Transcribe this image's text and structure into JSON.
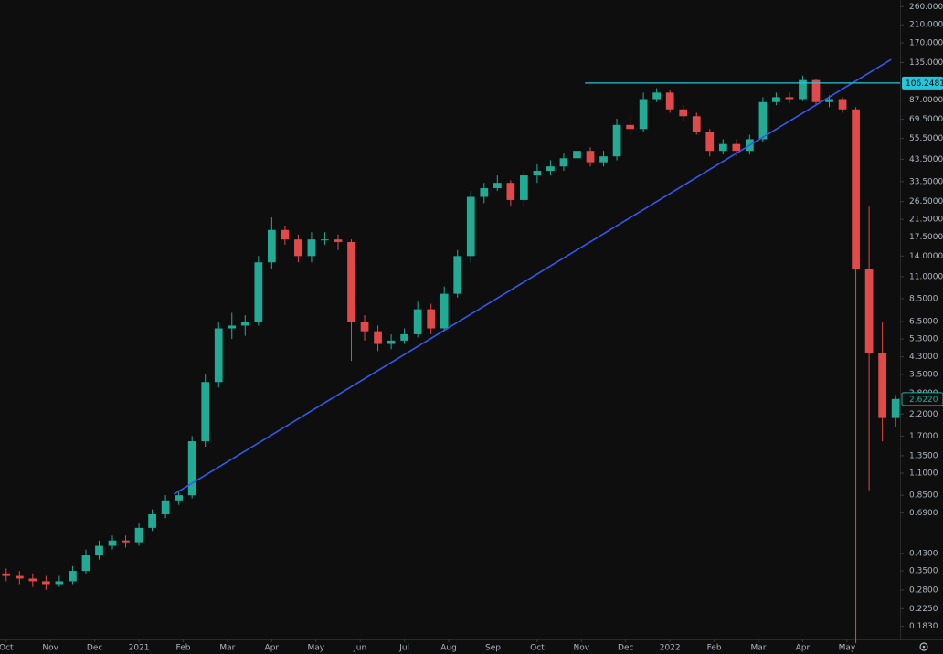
{
  "chart_data": {
    "type": "candlestick",
    "log_scale": true,
    "grid": false,
    "up_color": "#22ab94",
    "down_color": "#e04a4a",
    "xlim": [
      -0.14,
      20.2
    ],
    "xticks": [
      {
        "value": 0,
        "label": "Oct"
      },
      {
        "value": 1,
        "label": "Nov"
      },
      {
        "value": 2,
        "label": "Dec"
      },
      {
        "value": 3,
        "label": "2021"
      },
      {
        "value": 4,
        "label": "Feb"
      },
      {
        "value": 5,
        "label": "Mar"
      },
      {
        "value": 6,
        "label": "Apr"
      },
      {
        "value": 7,
        "label": "May"
      },
      {
        "value": 8,
        "label": "Jun"
      },
      {
        "value": 9,
        "label": "Jul"
      },
      {
        "value": 10,
        "label": "Aug"
      },
      {
        "value": 11,
        "label": "Sep"
      },
      {
        "value": 12,
        "label": "Oct"
      },
      {
        "value": 13,
        "label": "Nov"
      },
      {
        "value": 14,
        "label": "Dec"
      },
      {
        "value": 15,
        "label": "2022"
      },
      {
        "value": 16,
        "label": "Feb"
      },
      {
        "value": 17,
        "label": "Mar"
      },
      {
        "value": 18,
        "label": "Apr"
      },
      {
        "value": 19,
        "label": "May"
      }
    ],
    "ylim": [
      0.157,
      281
    ],
    "yticks": [
      {
        "value": 260,
        "label": "260.0000"
      },
      {
        "value": 210,
        "label": "210.0000"
      },
      {
        "value": 170,
        "label": "170.0000"
      },
      {
        "value": 135,
        "label": "135.0000"
      },
      {
        "value": 87,
        "label": "87.0000"
      },
      {
        "value": 69.5,
        "label": "69.5000"
      },
      {
        "value": 55.5,
        "label": "55.5000"
      },
      {
        "value": 43.5,
        "label": "43.5000"
      },
      {
        "value": 33.5,
        "label": "33.5000"
      },
      {
        "value": 26.5,
        "label": "26.5000"
      },
      {
        "value": 21.5,
        "label": "21.5000"
      },
      {
        "value": 17.5,
        "label": "17.5000"
      },
      {
        "value": 14,
        "label": "14.0000"
      },
      {
        "value": 11,
        "label": "11.0000"
      },
      {
        "value": 8.5,
        "label": "8.5000"
      },
      {
        "value": 6.5,
        "label": "6.5000"
      },
      {
        "value": 5.3,
        "label": "5.3000"
      },
      {
        "value": 4.3,
        "label": "4.3000"
      },
      {
        "value": 3.5,
        "label": "3.5000"
      },
      {
        "value": 2.8,
        "label": "2.8000"
      },
      {
        "value": 2.2,
        "label": "2.2000"
      },
      {
        "value": 1.7,
        "label": "1.7000"
      },
      {
        "value": 1.35,
        "label": "1.3500"
      },
      {
        "value": 1.1,
        "label": "1.1000"
      },
      {
        "value": 0.85,
        "label": "0.8500"
      },
      {
        "value": 0.69,
        "label": "0.6900"
      },
      {
        "value": 0.43,
        "label": "0.4300"
      },
      {
        "value": 0.35,
        "label": "0.3500"
      },
      {
        "value": 0.28,
        "label": "0.2800"
      },
      {
        "value": 0.225,
        "label": "0.2250"
      },
      {
        "value": 0.183,
        "label": "0.1830"
      }
    ],
    "x": [
      0,
      0.3,
      0.6,
      0.9,
      1.2,
      1.5,
      1.8,
      2.1,
      2.4,
      2.7,
      3,
      3.3,
      3.6,
      3.9,
      4.2,
      4.5,
      4.8,
      5.1,
      5.4,
      5.7,
      6,
      6.3,
      6.6,
      6.9,
      7.2,
      7.5,
      7.8,
      8.1,
      8.4,
      8.7,
      9,
      9.3,
      9.6,
      9.9,
      10.2,
      10.5,
      10.8,
      11.1,
      11.4,
      11.7,
      12,
      12.3,
      12.6,
      12.9,
      13.2,
      13.5,
      13.8,
      14.1,
      14.4,
      14.7,
      15,
      15.3,
      15.6,
      15.9,
      16.2,
      16.5,
      16.8,
      17.1,
      17.4,
      17.7,
      18,
      18.3,
      18.6,
      18.9,
      19.2,
      19.5,
      19.8,
      20.1
    ],
    "open": [
      0.34,
      0.33,
      0.32,
      0.31,
      0.3,
      0.31,
      0.35,
      0.42,
      0.47,
      0.5,
      0.49,
      0.58,
      0.68,
      0.8,
      0.85,
      1.6,
      3.2,
      6.0,
      6.2,
      6.5,
      13,
      19,
      17,
      14,
      17,
      17,
      16.5,
      6.5,
      5.8,
      5.0,
      5.2,
      5.6,
      7.5,
      6.0,
      9.0,
      14,
      28,
      31,
      33,
      27,
      36,
      38,
      40,
      44,
      48,
      42,
      45,
      65,
      62,
      88,
      95,
      78,
      72,
      60,
      48,
      52,
      48,
      55,
      85,
      90,
      88,
      110,
      85,
      88,
      78,
      12,
      4.5,
      2.1
    ],
    "high": [
      0.36,
      0.35,
      0.34,
      0.33,
      0.33,
      0.37,
      0.45,
      0.5,
      0.53,
      0.53,
      0.61,
      0.72,
      0.85,
      0.9,
      1.7,
      3.5,
      6.5,
      7.2,
      7.0,
      14,
      22,
      20,
      18,
      18.5,
      18.5,
      18,
      17,
      7.0,
      6.2,
      5.6,
      6.0,
      8.2,
      8.0,
      9.8,
      15,
      30,
      33,
      36,
      34,
      38,
      41,
      43,
      47,
      51,
      50,
      48,
      70,
      72,
      95,
      100,
      98,
      82,
      75,
      62,
      55,
      55,
      58,
      90,
      95,
      95,
      116,
      112,
      92,
      90,
      80,
      25,
      6.5,
      2.75
    ],
    "low": [
      0.31,
      0.3,
      0.29,
      0.28,
      0.29,
      0.3,
      0.34,
      0.4,
      0.45,
      0.46,
      0.47,
      0.56,
      0.65,
      0.76,
      0.82,
      1.5,
      3.0,
      5.3,
      5.5,
      6.2,
      12,
      16,
      13,
      13,
      16,
      15,
      4.1,
      5.2,
      4.6,
      4.7,
      5.0,
      5.4,
      5.6,
      5.8,
      8.6,
      13,
      26,
      30,
      25,
      25,
      33,
      36,
      38,
      42,
      40,
      40,
      43,
      58,
      60,
      85,
      75,
      68,
      58,
      45,
      46,
      45,
      46,
      53,
      82,
      84,
      86,
      82,
      80,
      75,
      0.15,
      0.9,
      1.6,
      1.9
    ],
    "close": [
      0.33,
      0.32,
      0.31,
      0.3,
      0.31,
      0.35,
      0.42,
      0.47,
      0.5,
      0.49,
      0.58,
      0.68,
      0.8,
      0.85,
      1.6,
      3.2,
      6.0,
      6.2,
      6.5,
      13,
      19,
      17,
      14,
      17,
      17,
      16.5,
      6.5,
      5.8,
      5.0,
      5.2,
      5.6,
      7.5,
      6.0,
      9.0,
      14,
      28,
      31,
      33,
      27,
      36,
      38,
      40,
      44,
      48,
      42,
      45,
      65,
      62,
      88,
      95,
      78,
      72,
      60,
      48,
      52,
      48,
      55,
      85,
      90,
      88,
      110,
      85,
      88,
      78,
      12,
      4.5,
      2.1,
      2.622
    ],
    "trendline": {
      "color": "#2f5bf0",
      "x": [
        3.79,
        20.0
      ],
      "y": [
        0.86,
        140
      ]
    },
    "price_line": {
      "color": "#26c6da",
      "from_x": 13.08,
      "value": 106.2481,
      "label": "106.2481"
    },
    "last_price": {
      "color": "#22ab94",
      "value": 2.622,
      "label": "2.6220"
    }
  }
}
